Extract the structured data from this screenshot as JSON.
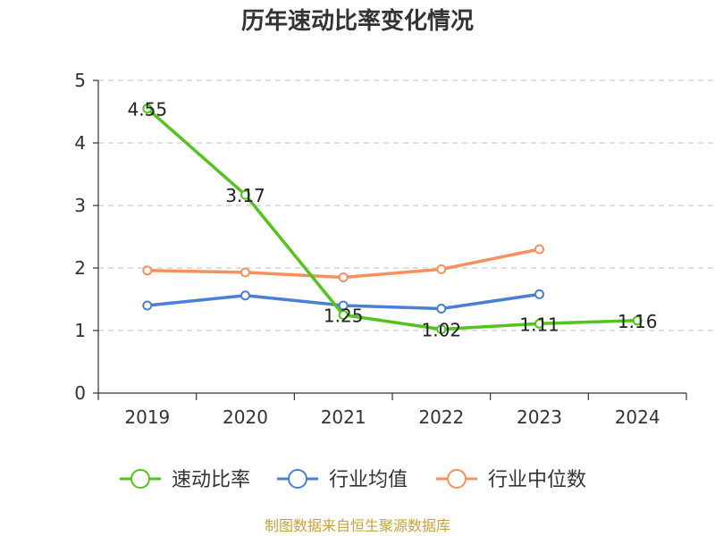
{
  "chart_data": {
    "type": "line",
    "title": "历年速动比率变化情况",
    "categories": [
      "2019",
      "2020",
      "2021",
      "2022",
      "2023",
      "2024"
    ],
    "ylim": [
      0,
      5
    ],
    "yticks": [
      "0",
      "1",
      "2",
      "3",
      "4",
      "5"
    ],
    "grid": "horizontal-dashed",
    "legend_position": "bottom",
    "series": [
      {
        "name": "速动比率",
        "color": "#52c41a",
        "values": [
          4.55,
          3.17,
          1.25,
          1.02,
          1.11,
          1.16
        ],
        "labels": [
          "4.55",
          "3.17",
          "1.25",
          "1.02",
          "1.11",
          "1.16"
        ]
      },
      {
        "name": "行业均值",
        "color": "#4a7fd6",
        "values": [
          1.4,
          1.56,
          1.4,
          1.35,
          1.58,
          null
        ]
      },
      {
        "name": "行业中位数",
        "color": "#f5915e",
        "values": [
          1.96,
          1.93,
          1.85,
          1.98,
          2.3,
          null
        ]
      }
    ]
  },
  "footer": {
    "source": "制图数据来自恒生聚源数据库"
  }
}
